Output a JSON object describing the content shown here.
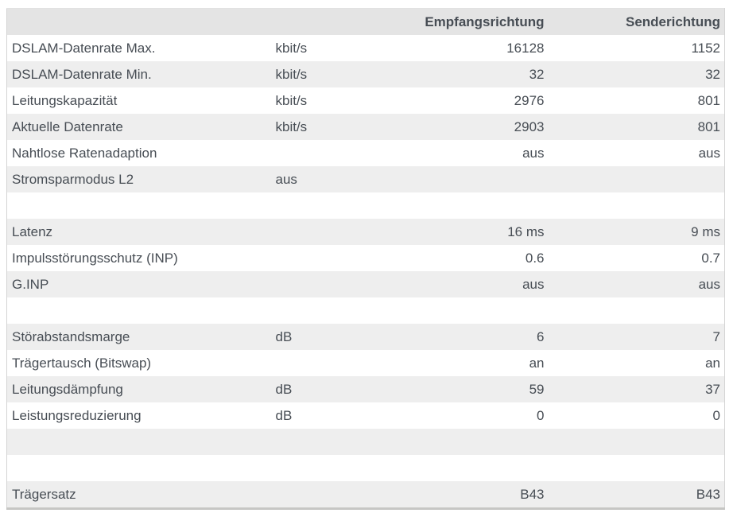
{
  "colors": {
    "header_bg": "#e4e4e4",
    "row_alt_bg": "#eeeeee",
    "text": "#474d54",
    "table_border": "#d4d4d4",
    "bottom_border": "#c6c6c4"
  },
  "table": {
    "headers": {
      "label": "",
      "unit": "",
      "receive": "Empfangsrichtung",
      "send": "Senderichtung"
    },
    "rows": [
      {
        "label": "DSLAM-Datenrate Max.",
        "unit": "kbit/s",
        "rx": "16128",
        "tx": "1152"
      },
      {
        "label": "DSLAM-Datenrate Min.",
        "unit": "kbit/s",
        "rx": "32",
        "tx": "32"
      },
      {
        "label": "Leitungskapazität",
        "unit": "kbit/s",
        "rx": "2976",
        "tx": "801"
      },
      {
        "label": "Aktuelle Datenrate",
        "unit": "kbit/s",
        "rx": "2903",
        "tx": "801"
      },
      {
        "label": "Nahtlose Ratenadaption",
        "unit": "",
        "rx": "aus",
        "tx": "aus"
      },
      {
        "label": "Stromsparmodus L2",
        "unit": "aus",
        "rx": "",
        "tx": ""
      },
      {
        "label": "",
        "unit": "",
        "rx": "",
        "tx": ""
      },
      {
        "label": "Latenz",
        "unit": "",
        "rx": "16 ms",
        "tx": "9 ms"
      },
      {
        "label": "Impulsstörungsschutz (INP)",
        "unit": "",
        "rx": "0.6",
        "tx": "0.7"
      },
      {
        "label": "G.INP",
        "unit": "",
        "rx": "aus",
        "tx": "aus"
      },
      {
        "label": "",
        "unit": "",
        "rx": "",
        "tx": ""
      },
      {
        "label": "Störabstandsmarge",
        "unit": "dB",
        "rx": "6",
        "tx": "7"
      },
      {
        "label": "Trägertausch (Bitswap)",
        "unit": "",
        "rx": "an",
        "tx": "an"
      },
      {
        "label": "Leitungsdämpfung",
        "unit": "dB",
        "rx": "59",
        "tx": "37"
      },
      {
        "label": "Leistungsreduzierung",
        "unit": "dB",
        "rx": "0",
        "tx": "0"
      },
      {
        "label": "",
        "unit": "",
        "rx": "",
        "tx": ""
      },
      {
        "label": "",
        "unit": "",
        "rx": "",
        "tx": ""
      },
      {
        "label": "Trägersatz",
        "unit": "",
        "rx": "B43",
        "tx": "B43"
      }
    ]
  }
}
